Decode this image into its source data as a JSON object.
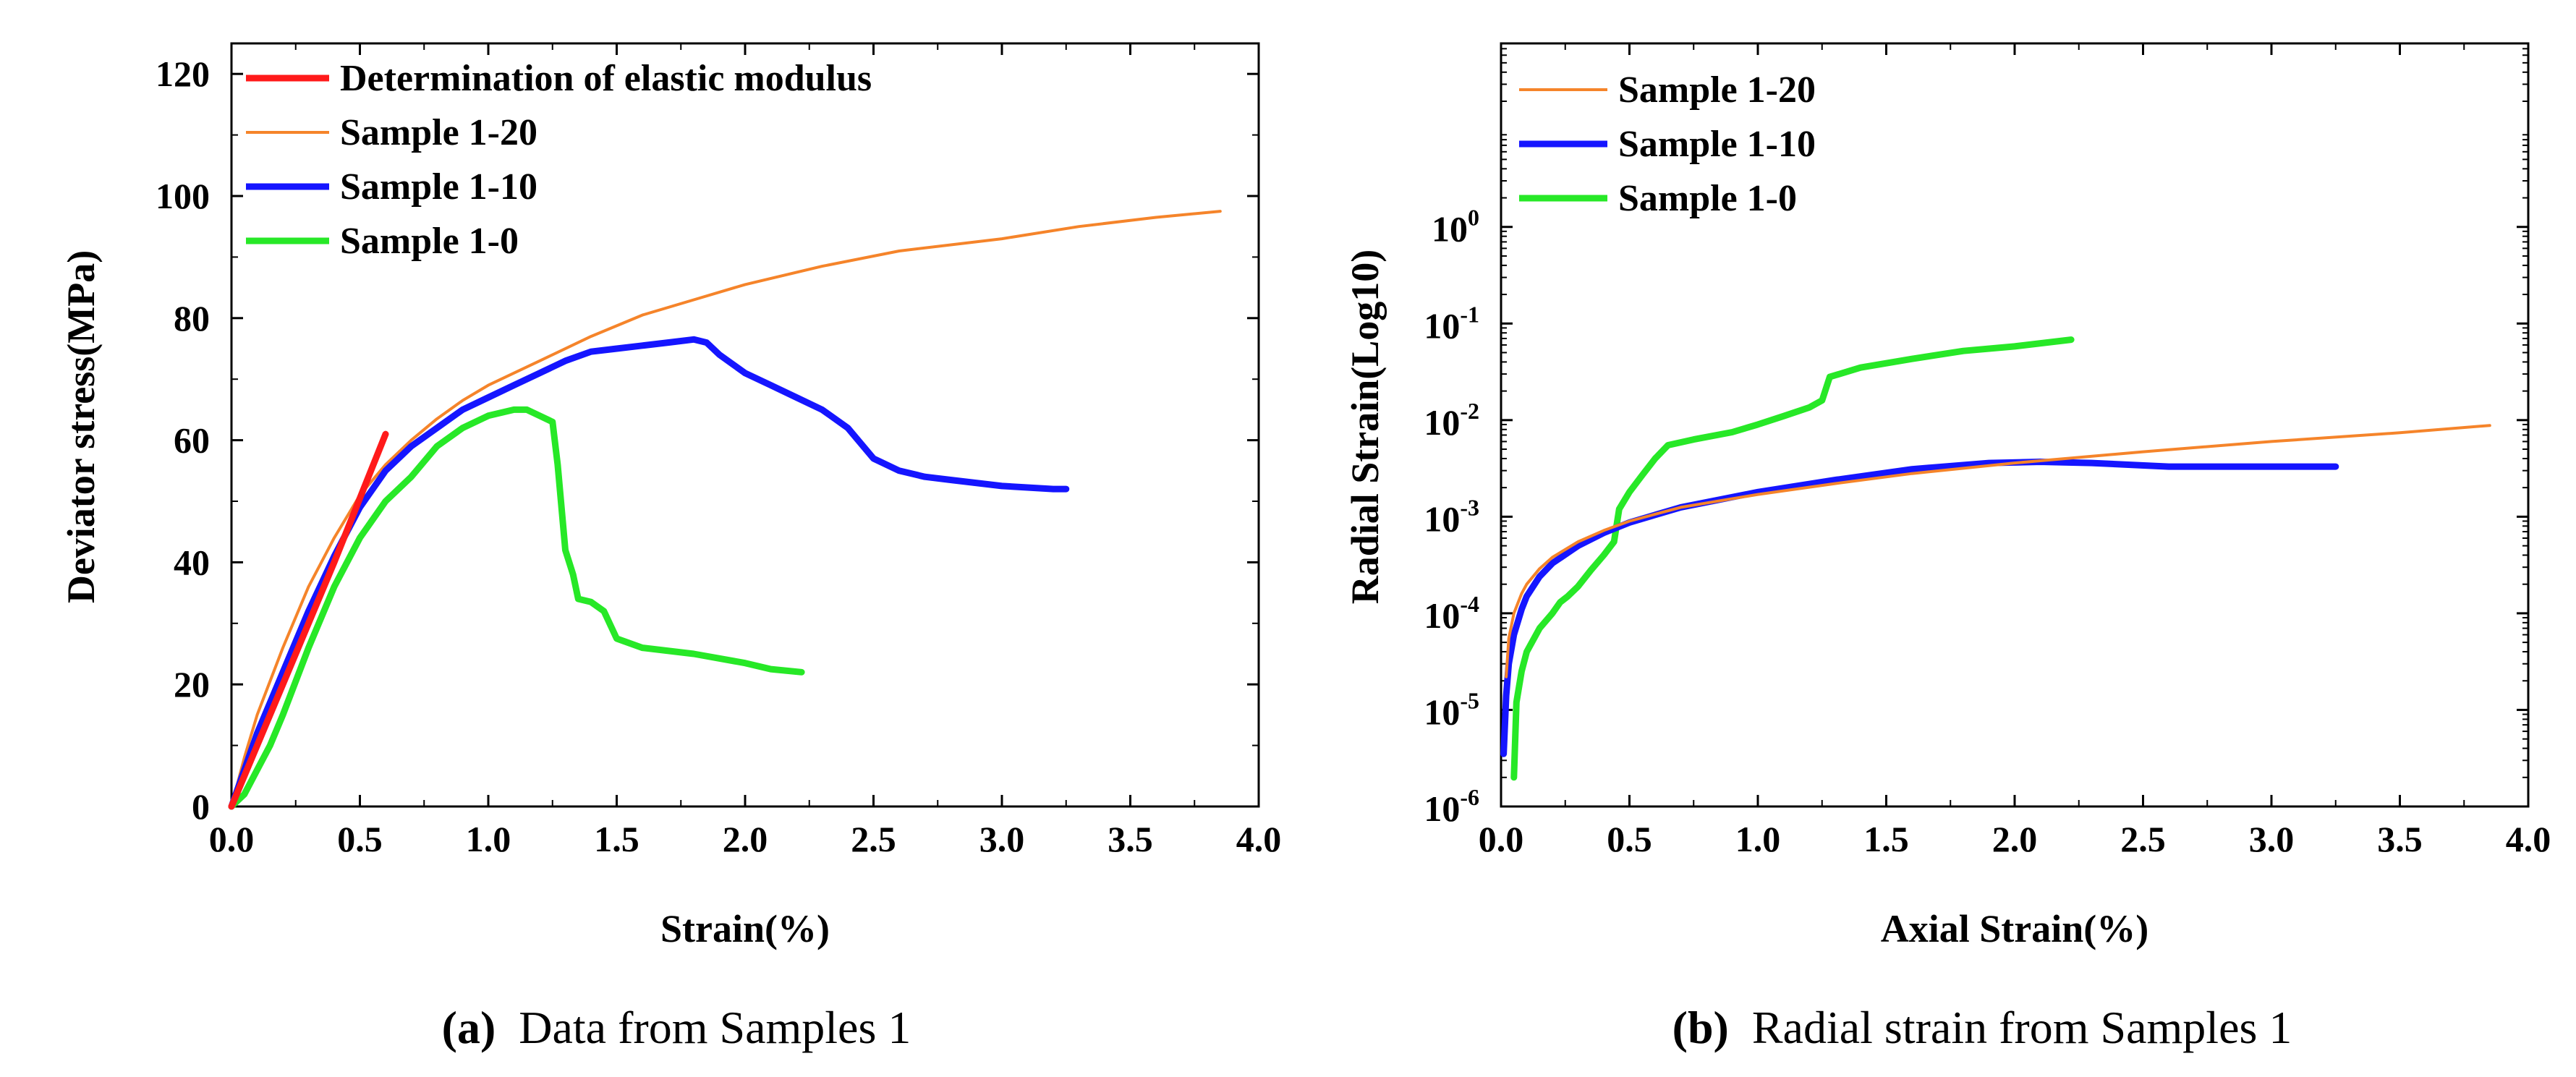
{
  "chart_data": [
    {
      "type": "line",
      "caption_label": "(a)",
      "caption_text": "Data from Samples 1",
      "xlabel": "Strain(%)",
      "ylabel": "Deviator stress(MPa)",
      "xlim": [
        0,
        4.0
      ],
      "ylim": [
        0,
        125
      ],
      "xticks": [
        0,
        0.5,
        1.0,
        1.5,
        2.0,
        2.5,
        3.0,
        3.5,
        4.0
      ],
      "xtick_labels": [
        "0.0",
        "0.5",
        "1.0",
        "1.5",
        "2.0",
        "2.5",
        "3.0",
        "3.5",
        "4.0"
      ],
      "yticks": [
        0,
        20,
        40,
        60,
        80,
        100,
        120
      ],
      "ytick_labels": [
        "0",
        "20",
        "40",
        "60",
        "80",
        "100",
        "120"
      ],
      "legend_position": "top-left",
      "series": [
        {
          "name": "Determination of elastic modulus",
          "color": "#ff1a1a",
          "points": [
            [
              0,
              0
            ],
            [
              0.2,
              20
            ],
            [
              0.4,
              40
            ],
            [
              0.6,
              61
            ]
          ]
        },
        {
          "name": "Sample 1-20",
          "color": "#f5842a",
          "points": [
            [
              0,
              0
            ],
            [
              0.05,
              8
            ],
            [
              0.1,
              15
            ],
            [
              0.2,
              26
            ],
            [
              0.3,
              36
            ],
            [
              0.4,
              44
            ],
            [
              0.5,
              51
            ],
            [
              0.6,
              56
            ],
            [
              0.7,
              60
            ],
            [
              0.8,
              63.5
            ],
            [
              0.9,
              66.5
            ],
            [
              1.0,
              69
            ],
            [
              1.2,
              73
            ],
            [
              1.4,
              77
            ],
            [
              1.6,
              80.5
            ],
            [
              1.8,
              83
            ],
            [
              2.0,
              85.5
            ],
            [
              2.3,
              88.5
            ],
            [
              2.6,
              91
            ],
            [
              3.0,
              93
            ],
            [
              3.3,
              95
            ],
            [
              3.6,
              96.5
            ],
            [
              3.85,
              97.5
            ]
          ]
        },
        {
          "name": "Sample 1-10",
          "color": "#1515ff",
          "points": [
            [
              0,
              0
            ],
            [
              0.05,
              6
            ],
            [
              0.1,
              12
            ],
            [
              0.2,
              22
            ],
            [
              0.3,
              32
            ],
            [
              0.4,
              41
            ],
            [
              0.5,
              49
            ],
            [
              0.6,
              55
            ],
            [
              0.7,
              59
            ],
            [
              0.8,
              62
            ],
            [
              0.9,
              65
            ],
            [
              1.0,
              67
            ],
            [
              1.1,
              69
            ],
            [
              1.2,
              71
            ],
            [
              1.3,
              73
            ],
            [
              1.4,
              74.5
            ],
            [
              1.5,
              75
            ],
            [
              1.6,
              75.5
            ],
            [
              1.7,
              76
            ],
            [
              1.8,
              76.5
            ],
            [
              1.85,
              76
            ],
            [
              1.9,
              74
            ],
            [
              2.0,
              71
            ],
            [
              2.1,
              69
            ],
            [
              2.2,
              67
            ],
            [
              2.3,
              65
            ],
            [
              2.4,
              62
            ],
            [
              2.5,
              57
            ],
            [
              2.6,
              55
            ],
            [
              2.7,
              54
            ],
            [
              2.8,
              53.5
            ],
            [
              3.0,
              52.5
            ],
            [
              3.2,
              52
            ],
            [
              3.25,
              52
            ]
          ]
        },
        {
          "name": "Sample 1-0",
          "color": "#27e827",
          "points": [
            [
              0,
              0
            ],
            [
              0.05,
              2
            ],
            [
              0.1,
              6
            ],
            [
              0.15,
              10
            ],
            [
              0.2,
              15
            ],
            [
              0.3,
              26
            ],
            [
              0.4,
              36
            ],
            [
              0.5,
              44
            ],
            [
              0.6,
              50
            ],
            [
              0.7,
              54
            ],
            [
              0.8,
              59
            ],
            [
              0.9,
              62
            ],
            [
              1.0,
              64
            ],
            [
              1.1,
              65
            ],
            [
              1.15,
              65
            ],
            [
              1.2,
              64
            ],
            [
              1.25,
              63
            ],
            [
              1.27,
              56
            ],
            [
              1.3,
              42
            ],
            [
              1.33,
              38
            ],
            [
              1.35,
              34
            ],
            [
              1.4,
              33.5
            ],
            [
              1.45,
              32
            ],
            [
              1.5,
              27.5
            ],
            [
              1.6,
              26
            ],
            [
              1.8,
              25
            ],
            [
              2.0,
              23.5
            ],
            [
              2.1,
              22.5
            ],
            [
              2.22,
              22
            ]
          ]
        }
      ]
    },
    {
      "type": "line",
      "caption_label": "(b)",
      "caption_text": "Radial strain from Samples 1",
      "xlabel": "Axial Strain(%)",
      "ylabel": "Radial Strain(Log10)",
      "yscale": "log",
      "xlim": [
        0,
        4.0
      ],
      "ylim_log10": [
        -6,
        1.9
      ],
      "xticks": [
        0,
        0.5,
        1.0,
        1.5,
        2.0,
        2.5,
        3.0,
        3.5,
        4.0
      ],
      "xtick_labels": [
        "0.0",
        "0.5",
        "1.0",
        "1.5",
        "2.0",
        "2.5",
        "3.0",
        "3.5",
        "4.0"
      ],
      "ytick_exponents": [
        -6,
        -5,
        -4,
        -3,
        -2,
        -1,
        0
      ],
      "ytick_base": "10",
      "ytick_exponent_labels": [
        "-6",
        "-5",
        "-4",
        "-3",
        "-2",
        "-1",
        "0"
      ],
      "legend_position": "top-left",
      "series": [
        {
          "name": "Sample 1-20",
          "color": "#f5842a",
          "points": [
            [
              0.02,
              2.2e-05
            ],
            [
              0.03,
              5.5e-05
            ],
            [
              0.05,
              0.0001
            ],
            [
              0.08,
              0.00016
            ],
            [
              0.1,
              0.0002
            ],
            [
              0.15,
              0.00029
            ],
            [
              0.2,
              0.00038
            ],
            [
              0.3,
              0.00055
            ],
            [
              0.4,
              0.00072
            ],
            [
              0.5,
              0.0009
            ],
            [
              0.7,
              0.00125
            ],
            [
              1.0,
              0.0017
            ],
            [
              1.3,
              0.0022
            ],
            [
              1.6,
              0.0028
            ],
            [
              2.0,
              0.0036
            ],
            [
              2.5,
              0.0047
            ],
            [
              3.0,
              0.006
            ],
            [
              3.5,
              0.0074
            ],
            [
              3.85,
              0.0088
            ]
          ]
        },
        {
          "name": "Sample 1-10",
          "color": "#1515ff",
          "points": [
            [
              0.01,
              3.5e-06
            ],
            [
              0.02,
              1.4e-05
            ],
            [
              0.03,
              3e-05
            ],
            [
              0.05,
              6e-05
            ],
            [
              0.08,
              0.00011
            ],
            [
              0.1,
              0.00015
            ],
            [
              0.15,
              0.00024
            ],
            [
              0.2,
              0.00033
            ],
            [
              0.3,
              0.0005
            ],
            [
              0.4,
              0.00068
            ],
            [
              0.5,
              0.00087
            ],
            [
              0.7,
              0.00125
            ],
            [
              1.0,
              0.0018
            ],
            [
              1.3,
              0.0024
            ],
            [
              1.6,
              0.0031
            ],
            [
              1.9,
              0.0036
            ],
            [
              2.1,
              0.0037
            ],
            [
              2.3,
              0.0036
            ],
            [
              2.6,
              0.0033
            ],
            [
              3.0,
              0.0033
            ],
            [
              3.25,
              0.0033
            ]
          ]
        },
        {
          "name": "Sample 1-0",
          "color": "#27e827",
          "points": [
            [
              0.05,
              2e-06
            ],
            [
              0.06,
              1.2e-05
            ],
            [
              0.08,
              2.5e-05
            ],
            [
              0.1,
              4e-05
            ],
            [
              0.15,
              7e-05
            ],
            [
              0.2,
              0.0001
            ],
            [
              0.23,
              0.00013
            ],
            [
              0.26,
              0.00015
            ],
            [
              0.3,
              0.00019
            ],
            [
              0.35,
              0.00028
            ],
            [
              0.4,
              0.0004
            ],
            [
              0.44,
              0.00055
            ],
            [
              0.46,
              0.0012
            ],
            [
              0.5,
              0.0018
            ],
            [
              0.55,
              0.0027
            ],
            [
              0.6,
              0.004
            ],
            [
              0.65,
              0.0055
            ],
            [
              0.75,
              0.0063
            ],
            [
              0.9,
              0.0075
            ],
            [
              1.0,
              0.009
            ],
            [
              1.1,
              0.011
            ],
            [
              1.2,
              0.0135
            ],
            [
              1.25,
              0.016
            ],
            [
              1.28,
              0.028
            ],
            [
              1.4,
              0.035
            ],
            [
              1.6,
              0.043
            ],
            [
              1.8,
              0.052
            ],
            [
              2.0,
              0.058
            ],
            [
              2.22,
              0.068
            ]
          ]
        }
      ]
    }
  ]
}
